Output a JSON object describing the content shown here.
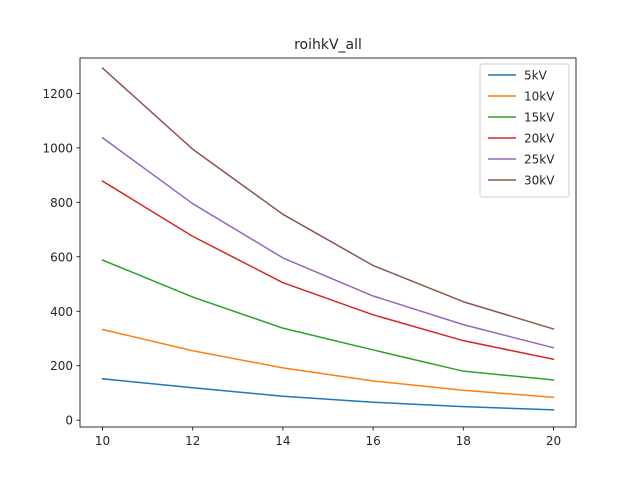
{
  "chart_data": {
    "type": "line",
    "title": "roihkV_all",
    "xlabel": "",
    "ylabel": "",
    "x": [
      10,
      12,
      14,
      16,
      18,
      20
    ],
    "xlim": [
      9.5,
      20.5
    ],
    "ylim": [
      -25,
      1330
    ],
    "xticks": [
      10,
      12,
      14,
      16,
      18,
      20
    ],
    "yticks": [
      0,
      200,
      400,
      600,
      800,
      1000,
      1200
    ],
    "grid": false,
    "legend_position": "upper-right",
    "series": [
      {
        "name": "5kV",
        "color": "#1f77b4",
        "values": [
          152,
          119,
          88,
          66,
          50,
          38
        ]
      },
      {
        "name": "10kV",
        "color": "#ff7f0e",
        "values": [
          333,
          255,
          192,
          144,
          110,
          84
        ]
      },
      {
        "name": "15kV",
        "color": "#2ca02c",
        "values": [
          588,
          452,
          338,
          258,
          180,
          148
        ]
      },
      {
        "name": "20kV",
        "color": "#d62728",
        "values": [
          878,
          675,
          505,
          387,
          292,
          224
        ]
      },
      {
        "name": "25kV",
        "color": "#9467bd",
        "values": [
          1037,
          795,
          596,
          456,
          351,
          266
        ]
      },
      {
        "name": "30kV",
        "color": "#8c564b",
        "values": [
          1293,
          995,
          756,
          568,
          435,
          335
        ]
      }
    ]
  }
}
